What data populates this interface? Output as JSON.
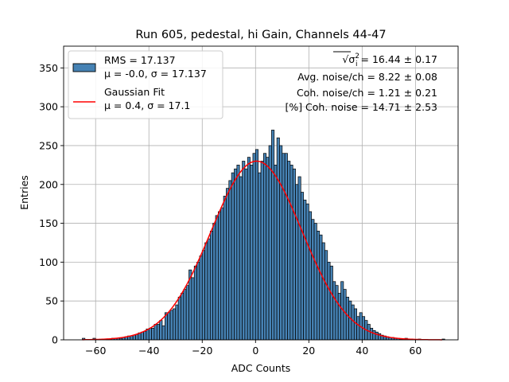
{
  "chart_data": {
    "type": "bar",
    "title": "Run 605, pedestal, hi Gain, Channels 44-47",
    "xlabel": "ADC Counts",
    "ylabel": "Entries",
    "xlim": [
      -72,
      76
    ],
    "ylim": [
      0,
      378
    ],
    "xticks": [
      -60,
      -40,
      -20,
      0,
      20,
      40,
      60
    ],
    "yticks": [
      0,
      50,
      100,
      150,
      200,
      250,
      300,
      350
    ],
    "xtick_labels": [
      "−60",
      "−40",
      "−20",
      "0",
      "20",
      "40",
      "60"
    ],
    "ytick_labels": [
      "0",
      "50",
      "100",
      "150",
      "200",
      "250",
      "300",
      "350"
    ],
    "grid": true,
    "bin_width": 1,
    "bin_start": -65,
    "values": [
      2,
      0,
      0,
      0,
      2,
      0,
      0,
      0,
      0,
      1,
      1,
      2,
      2,
      2,
      2,
      3,
      4,
      5,
      5,
      6,
      7,
      9,
      10,
      11,
      14,
      15,
      15,
      20,
      20,
      25,
      18,
      35,
      35,
      38,
      40,
      45,
      55,
      60,
      65,
      70,
      90,
      80,
      95,
      100,
      108,
      115,
      125,
      130,
      140,
      150,
      160,
      165,
      170,
      185,
      195,
      205,
      215,
      220,
      225,
      210,
      230,
      220,
      235,
      225,
      240,
      245,
      215,
      230,
      240,
      235,
      250,
      270,
      225,
      260,
      250,
      240,
      240,
      230,
      225,
      220,
      200,
      210,
      190,
      180,
      175,
      165,
      155,
      150,
      140,
      135,
      125,
      115,
      100,
      95,
      75,
      70,
      60,
      75,
      65,
      55,
      50,
      45,
      40,
      30,
      35,
      30,
      25,
      20,
      15,
      12,
      10,
      8,
      6,
      5,
      4,
      3,
      3,
      2,
      2,
      1,
      1,
      2,
      1,
      1,
      0,
      0,
      1,
      0,
      0,
      0,
      0,
      0,
      0,
      0,
      0,
      1
    ],
    "series": [
      {
        "type": "histogram",
        "legend": [
          "RMS = 17.137",
          "μ = -0.0, σ = 17.137"
        ],
        "color": "#4682b4",
        "edgecolor": "#000000"
      },
      {
        "type": "line",
        "legend": [
          "Gaussian Fit",
          "μ = 0.4, σ = 17.1"
        ],
        "color": "#ff0000",
        "mu": 0.4,
        "sigma": 17.1,
        "peak": 230
      }
    ],
    "stats": {
      "sigma_prefix": "√σ",
      "sigma_sub": "i",
      "sigma_sup": "2",
      "sigma_value": " = 16.44 ± 0.17",
      "avg_noise": "Avg. noise/ch = 8.22 ± 0.08",
      "coh_noise": "Coh. noise/ch = 1.21 ± 0.21",
      "coh_noise_pct": "[%] Coh. noise = 14.71 ± 2.53"
    }
  }
}
